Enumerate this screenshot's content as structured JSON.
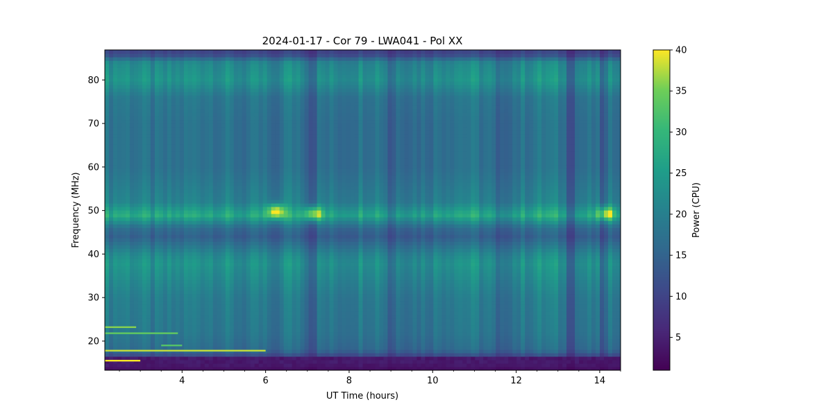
{
  "chart_data": {
    "type": "heatmap",
    "title": "2024-01-17 - Cor 79 - LWA041 - Pol XX",
    "xlabel": "UT Time (hours)",
    "ylabel": "Frequency (MHz)",
    "xlim": [
      2.15,
      14.5
    ],
    "ylim": [
      13.3,
      86.9
    ],
    "xticks": [
      4,
      6,
      8,
      10,
      12,
      14
    ],
    "yticks": [
      20,
      30,
      40,
      50,
      60,
      70,
      80
    ],
    "grid": false,
    "colormap": "viridis",
    "colorbar": {
      "label": "Power (CPU)",
      "range": [
        1,
        40
      ],
      "ticks": [
        5,
        10,
        15,
        20,
        25,
        30,
        35,
        40
      ]
    },
    "approx_spectrum_profile": [
      {
        "freq": 14,
        "power": 3
      },
      {
        "freq": 16,
        "power": 8
      },
      {
        "freq": 18,
        "power": 16
      },
      {
        "freq": 22,
        "power": 18
      },
      {
        "freq": 30,
        "power": 19
      },
      {
        "freq": 36,
        "power": 22
      },
      {
        "freq": 38,
        "power": 23
      },
      {
        "freq": 40,
        "power": 21
      },
      {
        "freq": 44,
        "power": 14
      },
      {
        "freq": 46,
        "power": 16
      },
      {
        "freq": 49,
        "power": 27
      },
      {
        "freq": 52,
        "power": 20
      },
      {
        "freq": 60,
        "power": 17
      },
      {
        "freq": 70,
        "power": 17
      },
      {
        "freq": 76,
        "power": 18
      },
      {
        "freq": 80,
        "power": 23
      },
      {
        "freq": 84,
        "power": 21
      },
      {
        "freq": 86,
        "power": 10
      }
    ],
    "dark_time_bands_hours": [
      6.2,
      7.1,
      9.0,
      11.6,
      13.3,
      14.1
    ],
    "bright_spots": [
      {
        "time": 6.2,
        "freq": 49.5,
        "power": 40
      },
      {
        "time": 7.1,
        "freq": 49.0,
        "power": 38
      },
      {
        "time": 14.1,
        "freq": 49.0,
        "power": 36
      }
    ],
    "rfi_lines": [
      {
        "freq": 17.8,
        "t_start": 2.15,
        "t_end": 6.0,
        "power": 38
      },
      {
        "freq": 15.5,
        "t_start": 2.15,
        "t_end": 3.0,
        "power": 40
      },
      {
        "freq": 21.8,
        "t_start": 2.15,
        "t_end": 3.9,
        "power": 34
      },
      {
        "freq": 23.2,
        "t_start": 2.15,
        "t_end": 2.9,
        "power": 36
      },
      {
        "freq": 19.0,
        "t_start": 3.5,
        "t_end": 4.0,
        "power": 33
      }
    ]
  },
  "colors": {
    "viridis_dark": "#440154",
    "viridis_mid": "#21918c",
    "viridis_bright": "#fde725"
  }
}
